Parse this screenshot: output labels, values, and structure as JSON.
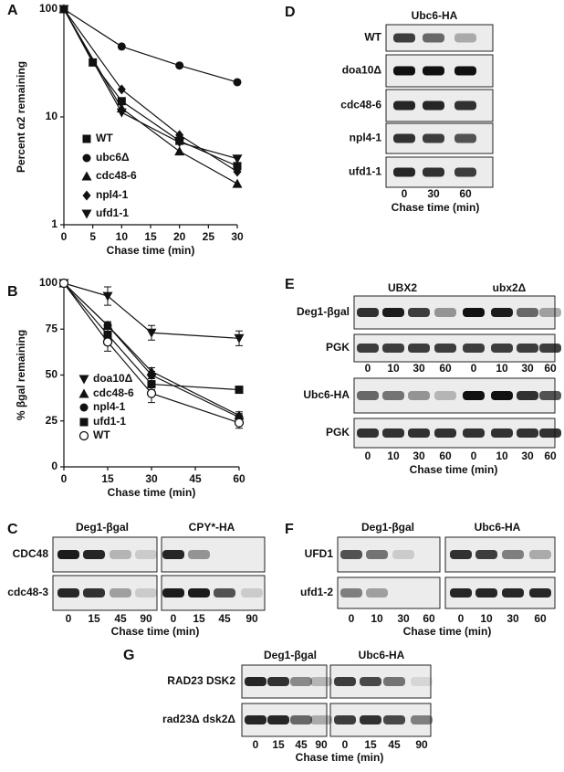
{
  "chart_data": [
    {
      "type": "line",
      "label": "A",
      "ylabel": "Percent α2 remaining",
      "xlabel": "Chase time (min)",
      "xlim": [
        0,
        30
      ],
      "xticks": [
        0,
        5,
        10,
        15,
        20,
        25,
        30
      ],
      "ylim": [
        1,
        100
      ],
      "yticks": [
        1,
        10,
        100
      ],
      "log_y": true,
      "series": [
        {
          "name": "WT",
          "marker": "square",
          "color": "#111",
          "x": [
            0,
            5,
            10,
            20,
            30
          ],
          "values": [
            100,
            32,
            14,
            6,
            3.5
          ]
        },
        {
          "name": "ubc6Δ",
          "marker": "circle",
          "color": "#111",
          "x": [
            0,
            10,
            20,
            30
          ],
          "values": [
            100,
            45,
            30,
            21
          ]
        },
        {
          "name": "cdc48-6",
          "marker": "triangle-up",
          "color": "#111",
          "x": [
            0,
            10,
            20,
            30
          ],
          "values": [
            100,
            12,
            4.8,
            2.4
          ]
        },
        {
          "name": "npl4-1",
          "marker": "diamond",
          "color": "#111",
          "x": [
            0,
            10,
            20,
            30
          ],
          "values": [
            100,
            18,
            6.8,
            3.1
          ]
        },
        {
          "name": "ufd1-1",
          "marker": "triangle-down",
          "color": "#111",
          "x": [
            0,
            10,
            20,
            30
          ],
          "values": [
            100,
            11,
            5.8,
            4.1
          ]
        }
      ]
    },
    {
      "type": "line",
      "label": "B",
      "ylabel": "% βgal remaining",
      "xlabel": "Chase time (min)",
      "xlim": [
        0,
        60
      ],
      "xticks": [
        0,
        15,
        30,
        45,
        60
      ],
      "ylim": [
        0,
        100
      ],
      "yticks": [
        0,
        25,
        50,
        75,
        100
      ],
      "log_y": false,
      "series": [
        {
          "name": "doa10Δ",
          "marker": "triangle-down",
          "color": "#111",
          "x": [
            0,
            15,
            30,
            60
          ],
          "values": [
            100,
            93,
            73,
            70
          ],
          "errors": [
            0,
            5,
            4,
            4
          ]
        },
        {
          "name": "cdc48-6",
          "marker": "triangle-up",
          "color": "#111",
          "x": [
            0,
            15,
            30,
            60
          ],
          "values": [
            100,
            77,
            52,
            28
          ],
          "errors": [
            0,
            2,
            2,
            2
          ]
        },
        {
          "name": "npl4-1",
          "marker": "circle",
          "color": "#111",
          "x": [
            0,
            15,
            30,
            60
          ],
          "values": [
            100,
            77,
            50,
            27
          ],
          "errors": [
            0,
            2,
            2,
            2
          ]
        },
        {
          "name": "ufd1-1",
          "marker": "square",
          "color": "#111",
          "x": [
            0,
            15,
            30,
            60
          ],
          "values": [
            100,
            72,
            45,
            42
          ],
          "errors": [
            0,
            3,
            3,
            1
          ]
        },
        {
          "name": "WT",
          "marker": "circle-open",
          "color": "#111",
          "x": [
            0,
            15,
            30,
            60
          ],
          "values": [
            100,
            68,
            40,
            24
          ],
          "errors": [
            0,
            5,
            5,
            3
          ]
        }
      ]
    }
  ],
  "panels": [
    {
      "label": "D",
      "headers": [
        "Ubc6-HA"
      ],
      "xlabel": "Chase time (min)",
      "groups": [
        {
          "lanes": [
            0,
            30,
            60
          ],
          "rows": [
            {
              "label": "WT",
              "bands": [
                0.8,
                0.6,
                0.3
              ]
            },
            {
              "label": "doa10Δ",
              "bands": [
                1,
                1,
                1
              ]
            },
            {
              "label": "cdc48-6",
              "bands": [
                0.9,
                0.9,
                0.85
              ]
            },
            {
              "label": "npl4-1",
              "bands": [
                0.85,
                0.8,
                0.7
              ]
            },
            {
              "label": "ufd1-1",
              "bands": [
                0.9,
                0.85,
                0.8
              ]
            }
          ]
        }
      ]
    },
    {
      "label": "E",
      "headers": [
        "UBX2",
        "ubx2Δ"
      ],
      "xlabel": "Chase time (min)",
      "groups": [
        {
          "lanes": [
            0,
            10,
            30,
            60,
            0,
            10,
            30,
            60
          ],
          "rows": [
            {
              "label": "Deg1-βgal",
              "bands": [
                0.85,
                0.95,
                0.8,
                0.4,
                1,
                0.95,
                0.6,
                0.35
              ]
            },
            {
              "label": "PGK",
              "bands": [
                0.8,
                0.8,
                0.8,
                0.8,
                0.8,
                0.8,
                0.8,
                0.8
              ]
            }
          ]
        },
        {
          "lanes": [
            0,
            10,
            30,
            60,
            0,
            10,
            30,
            60
          ],
          "rows": [
            {
              "label": "Ubc6-HA",
              "bands": [
                0.6,
                0.55,
                0.4,
                0.25,
                1,
                1,
                0.85,
                0.7
              ]
            },
            {
              "label": "PGK",
              "bands": [
                0.85,
                0.85,
                0.85,
                0.85,
                0.85,
                0.85,
                0.85,
                0.85
              ]
            }
          ]
        }
      ]
    },
    {
      "label": "C",
      "headers": [
        "Deg1-βgal",
        "CPY*-HA"
      ],
      "xlabel": "Chase time (min)",
      "groups": [
        {
          "lanes": [
            0,
            15,
            45,
            90,
            0,
            15,
            45,
            90
          ],
          "rows": [
            {
              "label": "CDC48",
              "bands": [
                0.95,
                0.9,
                0.25,
                0.15,
                0.9,
                0.4,
                0,
                0
              ]
            },
            {
              "label": "cdc48-3",
              "bands": [
                0.9,
                0.85,
                0.35,
                0.15,
                0.95,
                0.95,
                0.7,
                0.15
              ]
            }
          ]
        }
      ]
    },
    {
      "label": "F",
      "headers": [
        "Deg1-βgal",
        "Ubc6-HA"
      ],
      "xlabel": "Chase time (min)",
      "groups": [
        {
          "lanes": [
            0,
            10,
            30,
            60,
            0,
            10,
            30,
            60
          ],
          "rows": [
            {
              "label": "UFD1",
              "bands": [
                0.7,
                0.55,
                0.15,
                0,
                0.85,
                0.8,
                0.5,
                0.3
              ]
            },
            {
              "label": "ufd1-2",
              "bands": [
                0.5,
                0.35,
                0,
                0,
                0.9,
                0.9,
                0.9,
                0.9
              ]
            }
          ]
        }
      ]
    },
    {
      "label": "G",
      "headers": [
        "Deg1-βgal",
        "Ubc6-HA"
      ],
      "xlabel": "Chase time (min)",
      "groups": [
        {
          "lanes": [
            0,
            15,
            45,
            90,
            0,
            15,
            45,
            90
          ],
          "rows": [
            {
              "label": "RAD23   DSK2",
              "bands": [
                0.9,
                0.85,
                0.45,
                0.25,
                0.8,
                0.75,
                0.55,
                0.1
              ]
            },
            {
              "label": "rad23Δ   dsk2Δ",
              "bands": [
                0.9,
                0.9,
                0.6,
                0.3,
                0.8,
                0.85,
                0.75,
                0.5
              ]
            }
          ]
        }
      ]
    }
  ]
}
